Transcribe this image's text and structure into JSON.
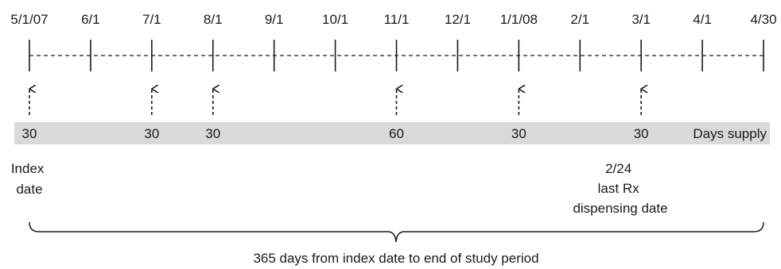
{
  "timeline": {
    "ticks": [
      "5/1/07",
      "6/1",
      "7/1",
      "8/1",
      "9/1",
      "10/1",
      "11/1",
      "12/1",
      "1/1/08",
      "2/1",
      "3/1",
      "4/1",
      "4/30"
    ]
  },
  "dispensings": [
    {
      "tick": "5/1/07",
      "days_supply": "30"
    },
    {
      "tick": "7/1",
      "days_supply": "30"
    },
    {
      "tick": "8/1",
      "days_supply": "30"
    },
    {
      "tick": "11/1",
      "days_supply": "60"
    },
    {
      "tick": "1/1/08",
      "days_supply": "30"
    },
    {
      "tick": "3/1",
      "days_supply": "30"
    }
  ],
  "supply_band": {
    "label": "Days supply",
    "color": "#d9d9d9"
  },
  "index_label": [
    "Index",
    "date"
  ],
  "last_rx_label": [
    "2/24",
    "last Rx",
    "dispensing date"
  ],
  "brace_label": "365 days from index date to end of study period"
}
